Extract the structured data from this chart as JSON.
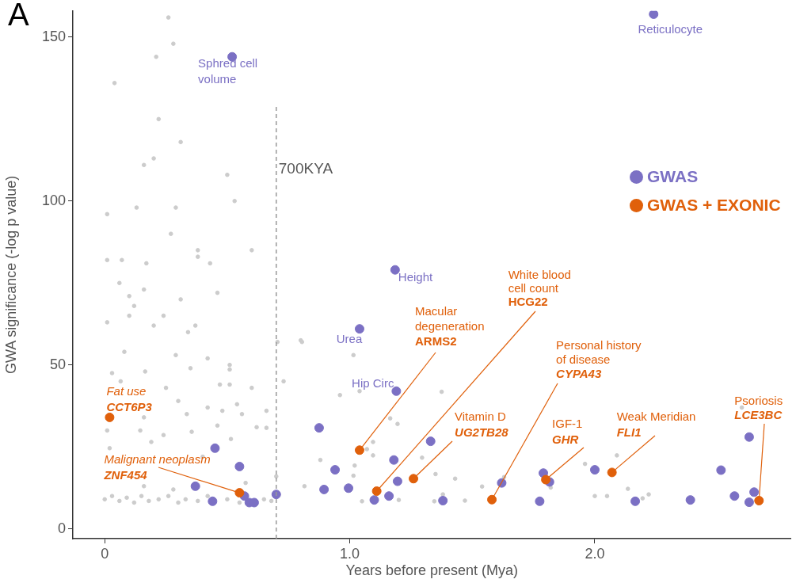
{
  "chart_data": {
    "type": "scatter",
    "xlabel": "Years before present (Mya)",
    "ylabel": "GWA significance (-log p value)",
    "xlim": [
      -0.13,
      2.8
    ],
    "ylim": [
      -3,
      158
    ],
    "xticks": [
      0,
      {
        "value": 1,
        "label": "1.0"
      },
      {
        "value": 2,
        "label": "2.0"
      }
    ],
    "yticks": [
      0,
      50,
      100,
      150
    ],
    "grid": false,
    "legend": "right",
    "marker": "circle",
    "ref_lines": [
      {
        "axis": "x",
        "value": 0.7,
        "label": "700KYA",
        "color": "#999999",
        "line_style": "dashed"
      }
    ],
    "series": [
      {
        "color": "#cccccc",
        "x": [
          0.26,
          0.28,
          0.21,
          0.04,
          0.22,
          0.31,
          0.2,
          0.16,
          0.5,
          0.53,
          0.01,
          0.13,
          0.29,
          0.27,
          0.38,
          0.38,
          0.43,
          0.01,
          0.07,
          0.17,
          0.6,
          0.06,
          0.16,
          0.1,
          0.31,
          0.46,
          0.12,
          0.01,
          0.1,
          0.24,
          0.2,
          0.37,
          0.34,
          0.08,
          0.29,
          0.42,
          0.03,
          0.165,
          0.35,
          0.51,
          0.51,
          0.065,
          0.47,
          0.51,
          0.25,
          0.3,
          0.54,
          0.6,
          0.705,
          0.73,
          0.805,
          0.335,
          0.42,
          0.48,
          0.56,
          0.66,
          0.16,
          0.01,
          0.145,
          0.24,
          0.355,
          0.46,
          0.62,
          0.66,
          0.515,
          0.19,
          0.02,
          0.4,
          0.575,
          0.7,
          0.16,
          0.28,
          0,
          0.03,
          0.06,
          0.09,
          0.12,
          0.15,
          0.18,
          0.22,
          0.26,
          0.3,
          0.33,
          0.38,
          0.42,
          0.5,
          0.55,
          0.65,
          0.68,
          0.8,
          1.015,
          0.96,
          1.04,
          1.375,
          1.165,
          1.195,
          1.095,
          1.07,
          1.095,
          1.295,
          1.02,
          1.015,
          1.35,
          1.43,
          1.54,
          1.38,
          1.47,
          1.05,
          1.2,
          1.345,
          1.63,
          1.82,
          0.815,
          0.88,
          1.96,
          2.09,
          2,
          2.05,
          2.135,
          2.195,
          2.22,
          2.6
        ],
        "values": [
          156,
          148,
          144,
          136,
          125,
          118,
          113,
          111,
          108,
          100,
          96,
          98,
          98,
          90,
          85,
          83,
          81,
          82,
          82,
          81,
          85,
          75,
          73,
          71,
          70,
          72,
          68,
          63,
          65,
          65,
          62,
          62,
          60,
          54,
          53,
          52,
          47.5,
          48,
          49,
          50,
          48.6,
          45,
          44,
          44,
          43,
          39,
          38,
          43,
          57,
          45,
          57,
          35,
          37,
          36,
          35,
          36,
          34,
          30,
          30,
          28.6,
          29.6,
          31.5,
          31,
          30.8,
          27.4,
          26.5,
          24.6,
          22,
          14,
          16,
          13,
          12,
          9,
          10,
          8.5,
          9.5,
          8,
          10,
          8.5,
          9,
          10,
          8,
          9,
          8.5,
          10,
          9,
          8,
          9,
          8.5,
          57.5,
          53,
          40.8,
          42,
          41.8,
          33.7,
          32,
          26.5,
          24.3,
          22.4,
          21.7,
          19.3,
          16.2,
          16.7,
          15.3,
          12.9,
          10.5,
          8.6,
          8.4,
          8.8,
          8.4,
          15.8,
          12.6,
          13,
          21,
          19.8,
          22.4,
          10,
          10,
          12.2,
          9.3,
          10.5,
          37
        ]
      },
      {
        "name": "GWAS",
        "color": "#7b70c4",
        "x": [
          2.24,
          0.52,
          1.185,
          1.04,
          1.19,
          0.45,
          0.55,
          0.37,
          0.44,
          0.57,
          0.59,
          0.61,
          0.7,
          0.875,
          0.94,
          0.895,
          0.995,
          1.1,
          1.16,
          1.18,
          1.195,
          1.33,
          1.38,
          1.62,
          1.775,
          1.79,
          1.815,
          2,
          2.165,
          2.39,
          2.515,
          2.57,
          2.63,
          2.63,
          2.65
        ],
        "values": [
          157,
          144,
          79,
          61,
          42,
          24.6,
          19,
          13,
          8.4,
          10,
          8,
          8,
          10.5,
          30.8,
          18,
          12,
          12.4,
          8.8,
          10,
          21,
          14.5,
          26.7,
          8.6,
          14,
          8.4,
          17,
          14.3,
          18,
          8.4,
          8.8,
          17.9,
          10,
          8.1,
          28,
          11.2
        ]
      },
      {
        "name": "GWAS + EXONIC",
        "color": "#e0600b",
        "x": [
          0.02,
          0.55,
          1.04,
          1.11,
          1.26,
          1.58,
          1.8,
          2.07,
          2.67
        ],
        "values": [
          34,
          11,
          24,
          11.5,
          15.3,
          8.9,
          15,
          17.2,
          8.6
        ]
      }
    ],
    "annotations": [
      "A",
      {
        "text": "Reticulocyte",
        "x": 2.24,
        "y": 157
      },
      {
        "text": "Sphred cell\nvolume",
        "x": 0.52,
        "y": 144
      },
      {
        "text": "Height",
        "x": 1.185,
        "y": 79
      },
      {
        "text": "Urea",
        "x": 1.04,
        "y": 61
      },
      {
        "text": "Hip Circ",
        "x": 1.19,
        "y": 42
      },
      {
        "text": "Fat use\nCCT6P3",
        "x": 0.02,
        "y": 34
      },
      {
        "text": "Malignant neoplasm\nZNF454",
        "x": 0.55,
        "y": 11
      },
      {
        "text": "Macular\ndegeneration\nARMS2",
        "x": 1.04,
        "y": 24
      },
      {
        "text": "White blood\ncell count\nHCG22",
        "x": 1.11,
        "y": 11.5
      },
      {
        "text": "Vitamin D\nUG2TB28",
        "x": 1.26,
        "y": 15.3
      },
      {
        "text": "Personal history\nof disease\nCYPA43",
        "x": 1.58,
        "y": 8.9
      },
      {
        "text": "IGF-1\nGHR",
        "x": 1.8,
        "y": 15
      },
      {
        "text": "Weak Meridian\nFLI1",
        "x": 2.07,
        "y": 17.2
      },
      {
        "text": "Psoriosis\nLCE3BC",
        "x": 2.67,
        "y": 8.6
      }
    ]
  }
}
